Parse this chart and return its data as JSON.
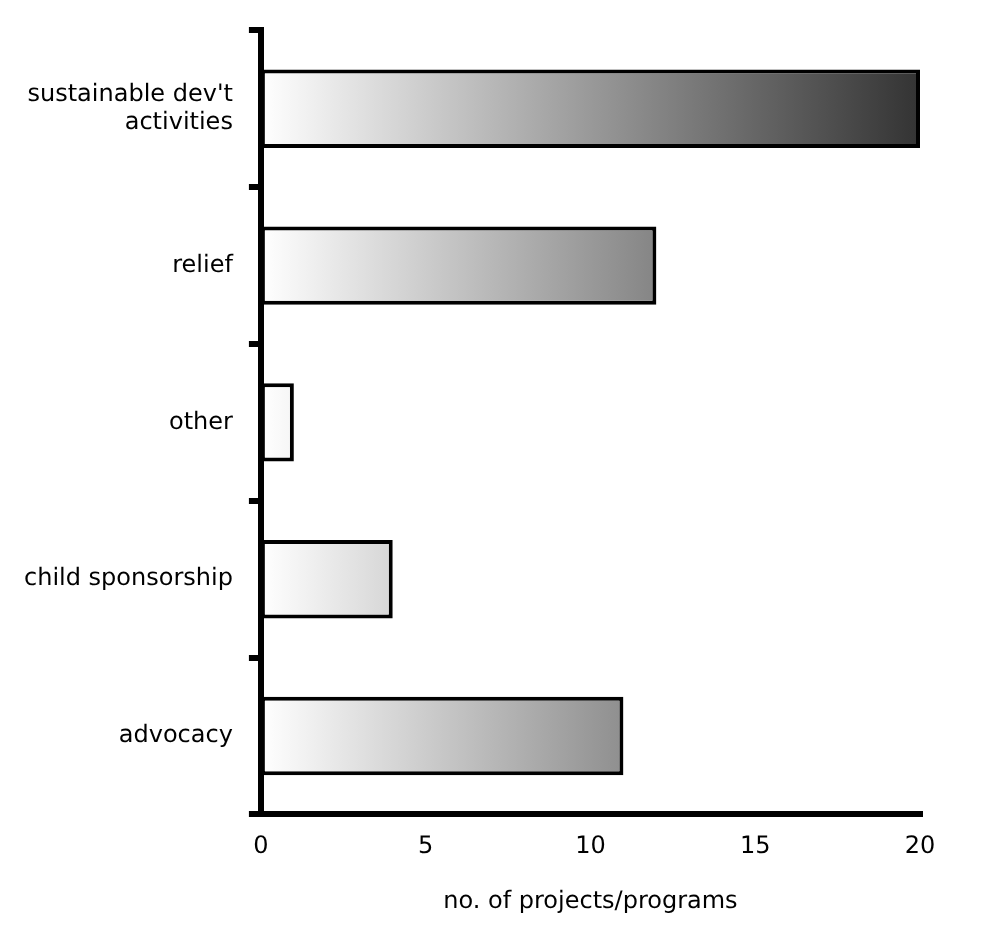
{
  "chart_data": {
    "type": "bar",
    "orientation": "horizontal",
    "xlabel": "no. of projects/programs",
    "categories": [
      "sustainable dev't activities",
      "relief",
      "other",
      "child sponsorship",
      "advocacy"
    ],
    "values": [
      20,
      12,
      1,
      4,
      11
    ],
    "color": "#333333",
    "xlim": [
      0,
      20
    ],
    "xticks": [
      0,
      5,
      10,
      15,
      20
    ],
    "grid": false,
    "legend": false
  }
}
